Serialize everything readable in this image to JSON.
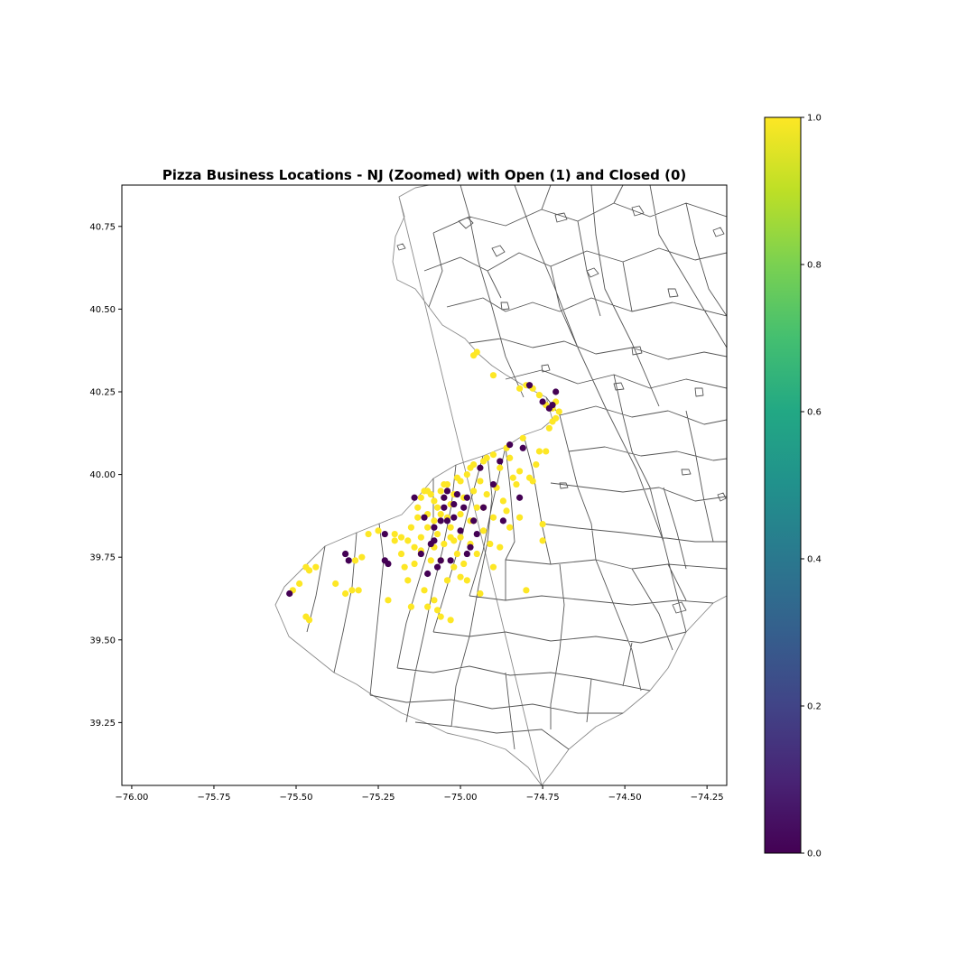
{
  "chart_data": {
    "type": "scatter",
    "title": "Pizza Business Locations - NJ (Zoomed) with Open (1) and Closed (0)",
    "xlabel": "",
    "ylabel": "",
    "xlim": [
      -76.03,
      -74.19
    ],
    "ylim": [
      39.06,
      40.875
    ],
    "x_ticks": [
      -76.0,
      -75.75,
      -75.5,
      -75.25,
      -75.0,
      -74.75,
      -74.5,
      -74.25
    ],
    "x_tick_labels": [
      "−76.00",
      "−75.75",
      "−75.50",
      "−75.25",
      "−75.00",
      "−74.75",
      "−74.50",
      "−74.25"
    ],
    "y_ticks": [
      39.25,
      39.5,
      39.75,
      40.0,
      40.25,
      40.5,
      40.75
    ],
    "y_tick_labels": [
      "39.25",
      "39.50",
      "39.75",
      "40.00",
      "40.25",
      "40.50",
      "40.75"
    ],
    "grid": false,
    "basemap": "New Jersey municipal boundaries (gray outlines)",
    "colormap": "viridis",
    "colorbar": {
      "range": [
        0.0,
        1.0
      ],
      "ticks": [
        0.0,
        0.2,
        0.4,
        0.6,
        0.8,
        1.0
      ],
      "tick_labels": [
        "0.0",
        "0.2",
        "0.4",
        "0.6",
        "0.8",
        "1.0"
      ]
    },
    "colors": {
      "open": "#fde725",
      "closed": "#440154",
      "boundary": "#555555"
    },
    "series": [
      {
        "status": 1,
        "points": [
          [
            -75.51,
            39.65
          ],
          [
            -75.49,
            39.67
          ],
          [
            -75.47,
            39.72
          ],
          [
            -75.46,
            39.71
          ],
          [
            -75.44,
            39.72
          ],
          [
            -75.47,
            39.57
          ],
          [
            -75.46,
            39.56
          ],
          [
            -75.38,
            39.67
          ],
          [
            -75.35,
            39.64
          ],
          [
            -75.33,
            39.65
          ],
          [
            -75.31,
            39.65
          ],
          [
            -75.32,
            39.74
          ],
          [
            -75.3,
            39.75
          ],
          [
            -75.28,
            39.82
          ],
          [
            -75.25,
            39.83
          ],
          [
            -75.22,
            39.62
          ],
          [
            -75.2,
            39.82
          ],
          [
            -75.18,
            39.81
          ],
          [
            -75.15,
            39.84
          ],
          [
            -75.14,
            39.78
          ],
          [
            -75.12,
            39.77
          ],
          [
            -75.11,
            39.65
          ],
          [
            -75.1,
            39.6
          ],
          [
            -75.08,
            39.62
          ],
          [
            -75.07,
            39.59
          ],
          [
            -75.06,
            39.57
          ],
          [
            -75.03,
            39.56
          ],
          [
            -75.15,
            39.6
          ],
          [
            -75.13,
            39.87
          ],
          [
            -75.13,
            39.9
          ],
          [
            -75.12,
            39.93
          ],
          [
            -75.11,
            39.95
          ],
          [
            -75.1,
            39.88
          ],
          [
            -75.1,
            39.84
          ],
          [
            -75.09,
            39.94
          ],
          [
            -75.08,
            39.92
          ],
          [
            -75.08,
            39.86
          ],
          [
            -75.07,
            39.9
          ],
          [
            -75.07,
            39.82
          ],
          [
            -75.06,
            39.95
          ],
          [
            -75.06,
            39.88
          ],
          [
            -75.05,
            39.93
          ],
          [
            -75.05,
            39.79
          ],
          [
            -75.04,
            39.87
          ],
          [
            -75.04,
            39.97
          ],
          [
            -75.03,
            39.91
          ],
          [
            -75.03,
            39.84
          ],
          [
            -75.02,
            39.8
          ],
          [
            -75.02,
            39.94
          ],
          [
            -75.01,
            39.99
          ],
          [
            -75.01,
            39.76
          ],
          [
            -75.0,
            39.88
          ],
          [
            -75.0,
            39.81
          ],
          [
            -74.99,
            39.93
          ],
          [
            -74.99,
            39.73
          ],
          [
            -74.98,
            39.68
          ],
          [
            -74.98,
            40.0
          ],
          [
            -74.97,
            39.86
          ],
          [
            -74.97,
            39.79
          ],
          [
            -74.96,
            39.95
          ],
          [
            -74.96,
            40.03
          ],
          [
            -74.95,
            39.9
          ],
          [
            -74.95,
            39.76
          ],
          [
            -74.94,
            39.98
          ],
          [
            -74.94,
            39.64
          ],
          [
            -74.93,
            39.83
          ],
          [
            -74.92,
            39.94
          ],
          [
            -74.92,
            40.05
          ],
          [
            -74.91,
            39.79
          ],
          [
            -74.9,
            39.87
          ],
          [
            -74.9,
            39.72
          ],
          [
            -74.89,
            39.96
          ],
          [
            -74.88,
            40.02
          ],
          [
            -74.88,
            39.78
          ],
          [
            -74.87,
            39.92
          ],
          [
            -74.86,
            39.89
          ],
          [
            -74.85,
            40.05
          ],
          [
            -74.85,
            39.84
          ],
          [
            -74.84,
            39.99
          ],
          [
            -74.83,
            39.97
          ],
          [
            -74.82,
            40.01
          ],
          [
            -74.82,
            39.87
          ],
          [
            -74.81,
            40.11
          ],
          [
            -74.8,
            39.65
          ],
          [
            -74.79,
            39.99
          ],
          [
            -74.78,
            39.98
          ],
          [
            -74.77,
            40.03
          ],
          [
            -74.76,
            40.07
          ],
          [
            -74.75,
            39.85
          ],
          [
            -74.75,
            39.8
          ],
          [
            -74.74,
            40.07
          ],
          [
            -74.73,
            40.14
          ],
          [
            -74.72,
            40.16
          ],
          [
            -74.72,
            40.2
          ],
          [
            -74.71,
            40.17
          ],
          [
            -74.71,
            40.22
          ],
          [
            -74.7,
            40.19
          ],
          [
            -74.74,
            40.21
          ],
          [
            -74.76,
            40.24
          ],
          [
            -74.78,
            40.26
          ],
          [
            -74.8,
            40.27
          ],
          [
            -74.82,
            40.26
          ],
          [
            -74.9,
            40.3
          ],
          [
            -74.95,
            40.37
          ],
          [
            -74.96,
            40.36
          ],
          [
            -75.17,
            39.72
          ],
          [
            -75.16,
            39.68
          ],
          [
            -75.18,
            39.76
          ],
          [
            -75.16,
            39.8
          ],
          [
            -75.14,
            39.73
          ],
          [
            -75.2,
            39.8
          ],
          [
            -75.09,
            39.74
          ],
          [
            -75.06,
            39.74
          ],
          [
            -75.02,
            39.72
          ],
          [
            -75.0,
            39.69
          ],
          [
            -75.04,
            39.68
          ],
          [
            -75.08,
            39.78
          ],
          [
            -75.03,
            39.81
          ],
          [
            -75.12,
            39.81
          ],
          [
            -75.1,
            39.95
          ],
          [
            -75.05,
            39.97
          ],
          [
            -75.0,
            39.98
          ],
          [
            -74.97,
            40.02
          ],
          [
            -74.93,
            40.04
          ],
          [
            -74.9,
            40.06
          ],
          [
            -74.86,
            40.08
          ],
          [
            -74.96,
            39.86
          ],
          [
            -74.93,
            39.9
          ]
        ]
      },
      {
        "status": 0,
        "points": [
          [
            -75.52,
            39.64
          ],
          [
            -75.35,
            39.76
          ],
          [
            -75.34,
            39.74
          ],
          [
            -75.23,
            39.74
          ],
          [
            -75.22,
            39.73
          ],
          [
            -75.23,
            39.82
          ],
          [
            -75.12,
            39.76
          ],
          [
            -75.1,
            39.7
          ],
          [
            -75.09,
            39.79
          ],
          [
            -75.08,
            39.8
          ],
          [
            -75.07,
            39.72
          ],
          [
            -75.06,
            39.74
          ],
          [
            -75.06,
            39.86
          ],
          [
            -75.05,
            39.9
          ],
          [
            -75.05,
            39.93
          ],
          [
            -75.04,
            39.95
          ],
          [
            -75.04,
            39.86
          ],
          [
            -75.03,
            39.74
          ],
          [
            -75.02,
            39.87
          ],
          [
            -75.02,
            39.91
          ],
          [
            -75.01,
            39.94
          ],
          [
            -75.0,
            39.83
          ],
          [
            -74.99,
            39.9
          ],
          [
            -74.98,
            39.93
          ],
          [
            -74.98,
            39.76
          ],
          [
            -74.97,
            39.78
          ],
          [
            -74.96,
            39.86
          ],
          [
            -74.95,
            39.82
          ],
          [
            -74.94,
            40.02
          ],
          [
            -74.93,
            39.9
          ],
          [
            -74.9,
            39.97
          ],
          [
            -74.88,
            40.04
          ],
          [
            -74.87,
            39.86
          ],
          [
            -74.85,
            40.09
          ],
          [
            -74.82,
            39.93
          ],
          [
            -74.81,
            40.08
          ],
          [
            -74.79,
            40.27
          ],
          [
            -74.75,
            40.22
          ],
          [
            -74.73,
            40.2
          ],
          [
            -74.72,
            40.21
          ],
          [
            -74.71,
            40.25
          ],
          [
            -75.14,
            39.93
          ],
          [
            -75.11,
            39.87
          ],
          [
            -75.08,
            39.84
          ]
        ]
      }
    ]
  }
}
